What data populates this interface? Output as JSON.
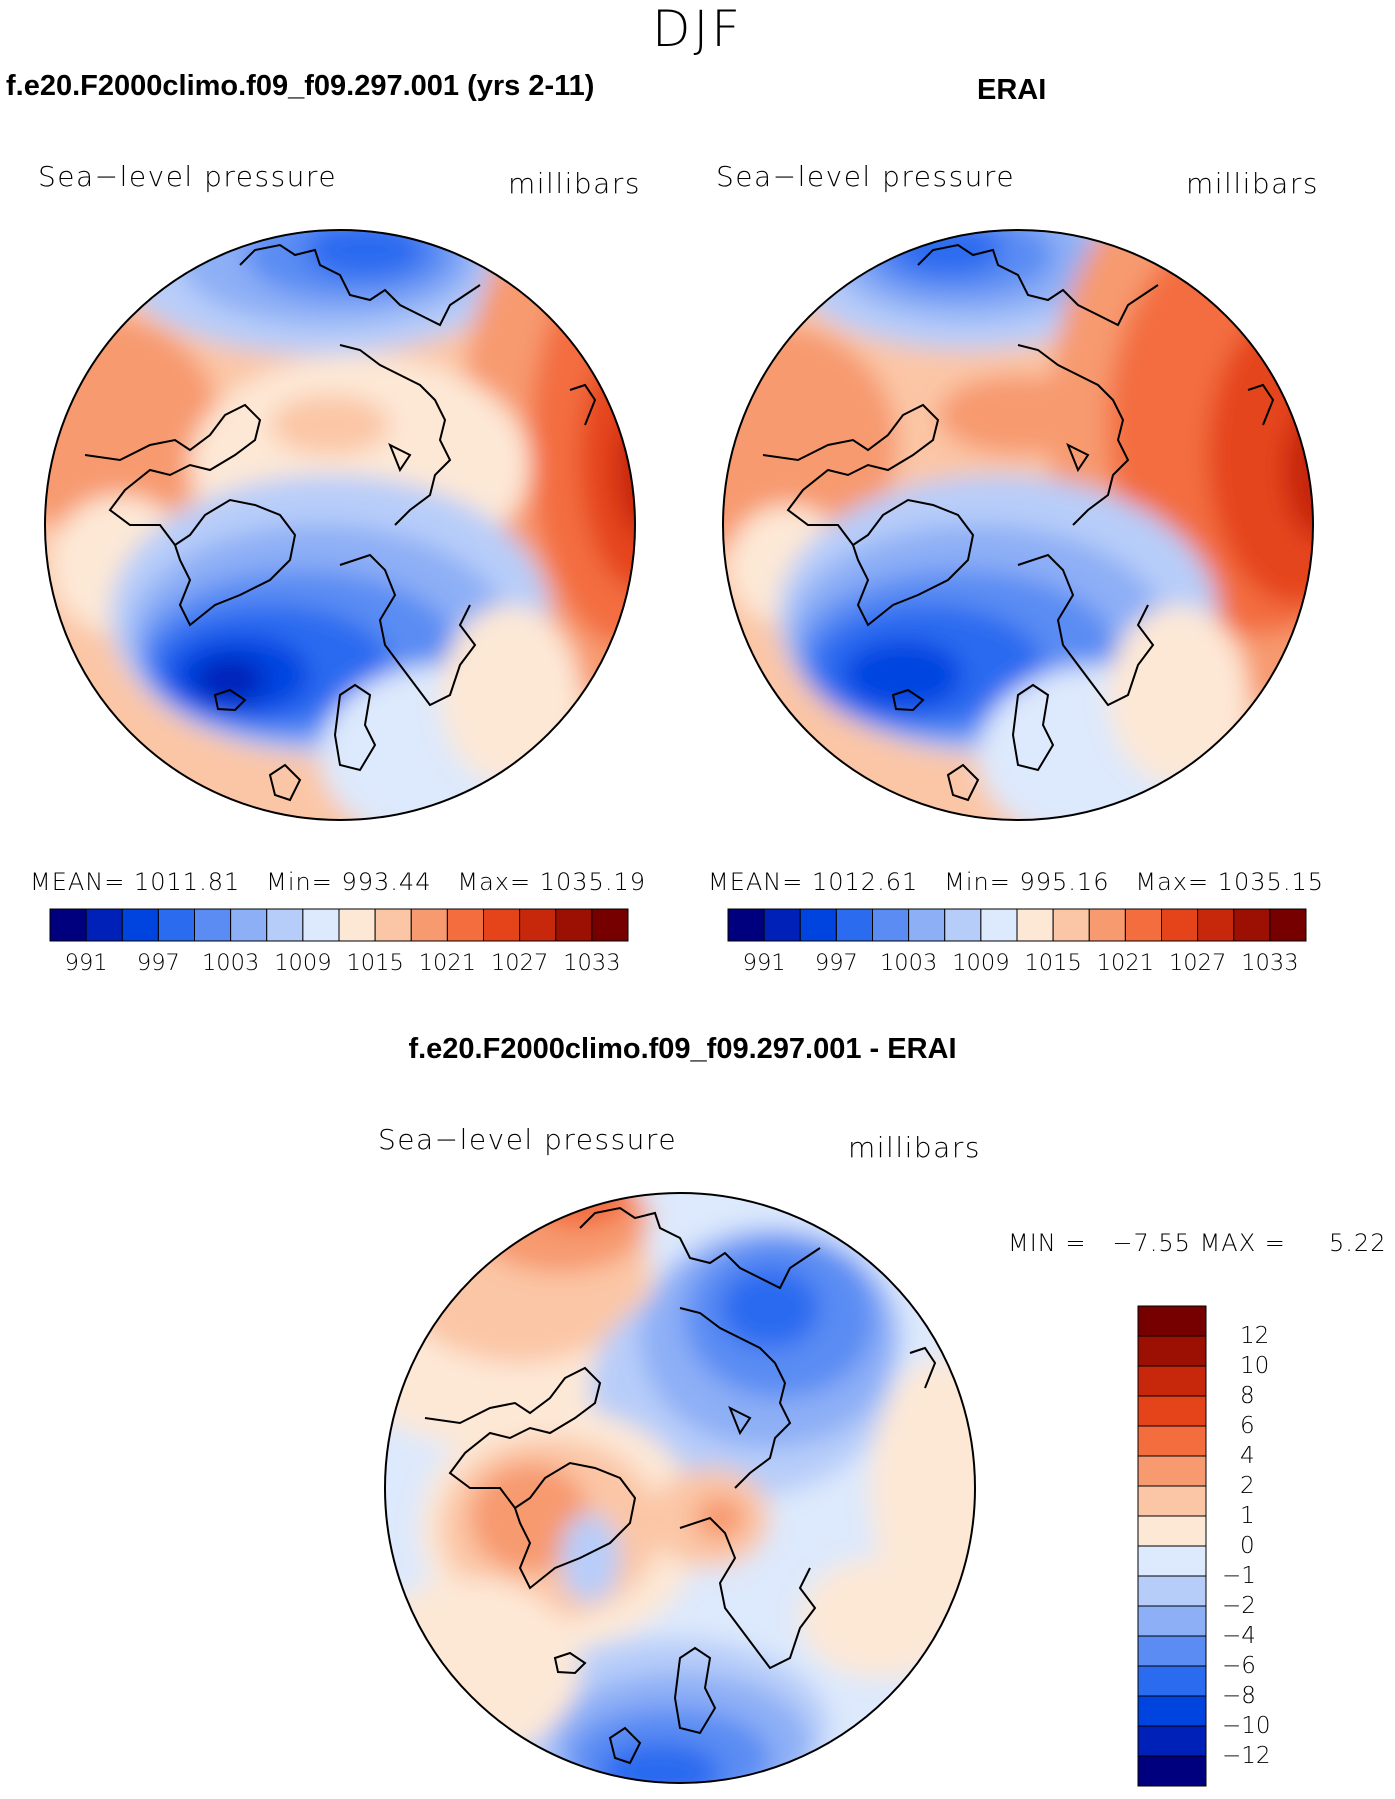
{
  "season": "DJF",
  "panels": [
    {
      "title": "f.e20.F2000climo.f09_f09.297.001 (yrs 2-11)",
      "variable": "Sea−level pressure",
      "units": "millibars",
      "mean_label": "MEAN=",
      "mean": "1011.81",
      "min_label": "Min=",
      "min": "993.44",
      "max_label": "Max=",
      "max": "1035.19"
    },
    {
      "title": "ERAI",
      "variable": "Sea−level pressure",
      "units": "millibars",
      "mean_label": "MEAN=",
      "mean": "1012.61",
      "min_label": "Min=",
      "min": "995.16",
      "max_label": "Max=",
      "max": "1035.15"
    }
  ],
  "colorbar_top": {
    "colors": [
      "#00007f",
      "#0021b8",
      "#0044e0",
      "#2b6bf0",
      "#5a8cf3",
      "#8daff6",
      "#b7cdf9",
      "#dde9fc",
      "#fde8d6",
      "#fbc6a6",
      "#f79a6f",
      "#f36d3f",
      "#e5441b",
      "#c7280c",
      "#9c1004",
      "#760000"
    ],
    "labels": [
      "991",
      "997",
      "1003",
      "1009",
      "1015",
      "1021",
      "1027",
      "1033"
    ]
  },
  "difference": {
    "title": "f.e20.F2000climo.f09_f09.297.001 - ERAI",
    "variable": "Sea−level pressure",
    "units": "millibars",
    "min_label": "MIN =",
    "min": "−7.55",
    "max_label": "MAX =",
    "max": "5.22"
  },
  "colorbar_diff": {
    "colors": [
      "#760000",
      "#9c1004",
      "#c7280c",
      "#e5441b",
      "#f36d3f",
      "#f79a6f",
      "#fbc6a6",
      "#fde8d6",
      "#dde9fc",
      "#b7cdf9",
      "#8daff6",
      "#5a8cf3",
      "#2b6bf0",
      "#0044e0",
      "#0021b8",
      "#00007f"
    ],
    "labels": [
      "12",
      "10",
      "8",
      "6",
      "4",
      "2",
      "1",
      "0",
      "−1",
      "−2",
      "−4",
      "−6",
      "−8",
      "−10",
      "−12"
    ]
  }
}
